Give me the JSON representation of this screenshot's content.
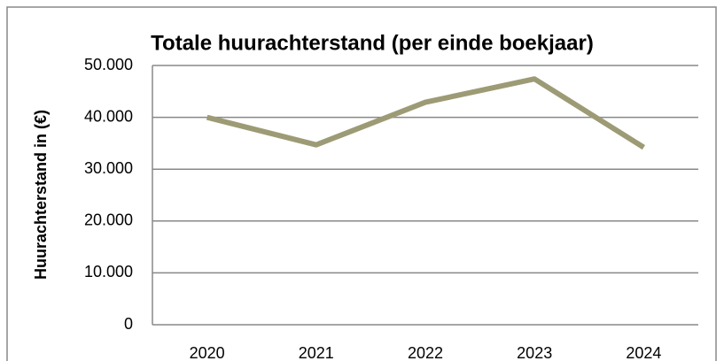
{
  "chart_data": {
    "type": "line",
    "title": "Totale huurachterstand (per einde boekjaar)",
    "y_label": "Huurachterstand in (€)",
    "categories": [
      "2020",
      "2021",
      "2022",
      "2023",
      "2024"
    ],
    "series": [
      {
        "name": "Huurachterstand",
        "color": "#9d9b75",
        "values": [
          40000,
          34700,
          42900,
          47400,
          34200
        ]
      }
    ],
    "ylim": [
      0,
      50000
    ],
    "yticks": [
      0,
      {
        "value": 10000,
        "label": "10.000"
      },
      {
        "value": 20000,
        "label": "20.000"
      },
      {
        "value": 30000,
        "label": "30.000"
      },
      {
        "value": 40000,
        "label": "40.000"
      },
      {
        "value": 50000,
        "label": "50.000"
      }
    ],
    "grid": true
  }
}
